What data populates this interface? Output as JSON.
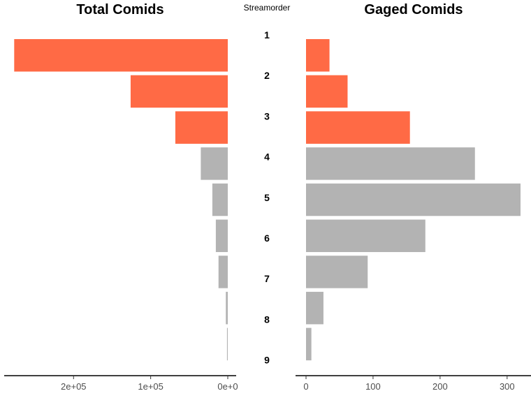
{
  "chart_data": [
    {
      "type": "bar",
      "orientation": "horizontal",
      "direction": "reversed",
      "title": "Total Comids",
      "categories": [
        "1",
        "2",
        "3",
        "4",
        "5",
        "6",
        "7",
        "8",
        "9"
      ],
      "values": [
        277000,
        126000,
        68000,
        35000,
        20000,
        15500,
        12000,
        2500,
        1000
      ],
      "highlight": [
        true,
        true,
        true,
        false,
        false,
        false,
        false,
        false,
        false
      ],
      "xlim": [
        0,
        290000
      ],
      "ticks": [
        0,
        100000,
        200000
      ],
      "tick_labels": [
        "0e+0",
        "1e+05",
        "2e+05"
      ]
    },
    {
      "type": "bar",
      "orientation": "horizontal",
      "title": "Gaged Comids",
      "categories": [
        "1",
        "2",
        "3",
        "4",
        "5",
        "6",
        "7",
        "8",
        "9"
      ],
      "values": [
        35,
        62,
        155,
        252,
        320,
        178,
        92,
        26,
        8
      ],
      "highlight": [
        true,
        true,
        true,
        false,
        false,
        false,
        false,
        false,
        false
      ],
      "xlim": [
        0,
        335
      ],
      "ticks": [
        0,
        100,
        200,
        300
      ],
      "tick_labels": [
        "0",
        "100",
        "200",
        "300"
      ]
    }
  ],
  "center_axis": {
    "title": "Streamorder",
    "labels": [
      "1",
      "2",
      "3",
      "4",
      "5",
      "6",
      "7",
      "8",
      "9"
    ]
  },
  "colors": {
    "highlight": "#ff6a45",
    "normal": "#b3b3b3",
    "axis": "#000000",
    "tick_text": "#4d4d4d"
  }
}
